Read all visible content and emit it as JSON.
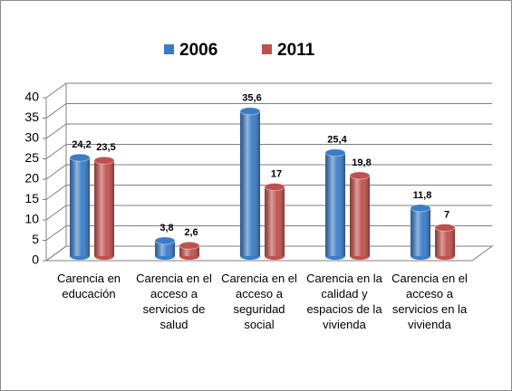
{
  "chart_data": {
    "type": "bar",
    "categories": [
      "Carencia en educación",
      "Carencia en el acceso a servicios de salud",
      "Carencia en el acceso a seguridad social",
      "Carencia en la calidad y espacios de la vivienda",
      "Carencia en el acceso a servicios en la vivienda"
    ],
    "series": [
      {
        "name": "2006",
        "color": "#3a7cc7",
        "values": [
          24.2,
          3.8,
          35.6,
          25.4,
          11.8
        ],
        "value_labels": [
          "24,2",
          "3,8",
          "35,6",
          "25,4",
          "11,8"
        ]
      },
      {
        "name": "2011",
        "color": "#c0504d",
        "values": [
          23.5,
          2.6,
          17,
          19.8,
          7
        ],
        "value_labels": [
          "23,5",
          "2,6",
          "17",
          "19,8",
          "7"
        ]
      }
    ],
    "ylim": [
      0,
      40
    ],
    "yticks": [
      0,
      5,
      10,
      15,
      20,
      25,
      30,
      35,
      40
    ],
    "grid": true,
    "legend": "top"
  }
}
